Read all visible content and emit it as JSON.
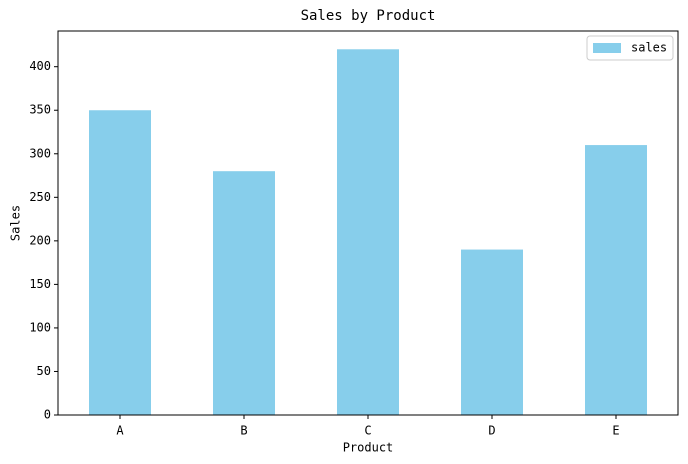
{
  "chart_data": {
    "type": "bar",
    "title": "Sales by Product",
    "x_label": "Product",
    "y_label": "Sales",
    "categories": [
      "A",
      "B",
      "C",
      "D",
      "E"
    ],
    "series": [
      {
        "name": "sales",
        "color": "#87ceeb",
        "values": [
          350,
          280,
          420,
          190,
          310
        ]
      }
    ],
    "ylim": [
      0,
      441
    ],
    "yticks": [
      0,
      50,
      100,
      150,
      200,
      250,
      300,
      350,
      400
    ],
    "legend": "upper-right",
    "grid": false
  }
}
